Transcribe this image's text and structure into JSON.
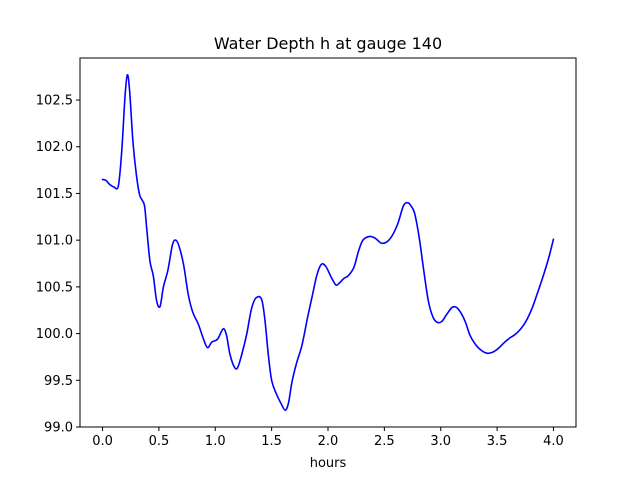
{
  "chart_data": {
    "type": "line",
    "title": "Water Depth h at gauge 140",
    "xlabel": "hours",
    "ylabel": "",
    "xlim": [
      -0.2,
      4.2
    ],
    "ylim": [
      99.0,
      102.95
    ],
    "x_ticks": [
      0.0,
      0.5,
      1.0,
      1.5,
      2.0,
      2.5,
      3.0,
      3.5,
      4.0
    ],
    "x_tick_labels": [
      "0.0",
      "0.5",
      "1.0",
      "1.5",
      "2.0",
      "2.5",
      "3.0",
      "3.5",
      "4.0"
    ],
    "y_ticks": [
      99.0,
      99.5,
      100.0,
      100.5,
      101.0,
      101.5,
      102.0,
      102.5
    ],
    "y_tick_labels": [
      "99.0",
      "99.5",
      "100.0",
      "100.5",
      "101.0",
      "101.5",
      "102.0",
      "102.5"
    ],
    "grid": false,
    "series": [
      {
        "color": "#0000ff",
        "points": [
          [
            0.0,
            101.65
          ],
          [
            0.03,
            101.64
          ],
          [
            0.06,
            101.6
          ],
          [
            0.1,
            101.57
          ],
          [
            0.14,
            101.58
          ],
          [
            0.17,
            101.95
          ],
          [
            0.2,
            102.55
          ],
          [
            0.22,
            102.77
          ],
          [
            0.24,
            102.6
          ],
          [
            0.27,
            102.05
          ],
          [
            0.3,
            101.7
          ],
          [
            0.33,
            101.48
          ],
          [
            0.37,
            101.38
          ],
          [
            0.39,
            101.15
          ],
          [
            0.42,
            100.78
          ],
          [
            0.45,
            100.62
          ],
          [
            0.48,
            100.35
          ],
          [
            0.51,
            100.29
          ],
          [
            0.54,
            100.5
          ],
          [
            0.58,
            100.68
          ],
          [
            0.62,
            100.95
          ],
          [
            0.65,
            101.0
          ],
          [
            0.68,
            100.93
          ],
          [
            0.72,
            100.73
          ],
          [
            0.76,
            100.42
          ],
          [
            0.8,
            100.23
          ],
          [
            0.85,
            100.1
          ],
          [
            0.89,
            99.96
          ],
          [
            0.93,
            99.85
          ],
          [
            0.97,
            99.91
          ],
          [
            1.02,
            99.94
          ],
          [
            1.07,
            100.05
          ],
          [
            1.1,
            99.98
          ],
          [
            1.13,
            99.78
          ],
          [
            1.17,
            99.64
          ],
          [
            1.2,
            99.64
          ],
          [
            1.24,
            99.8
          ],
          [
            1.28,
            100.0
          ],
          [
            1.32,
            100.26
          ],
          [
            1.36,
            100.38
          ],
          [
            1.41,
            100.37
          ],
          [
            1.44,
            100.15
          ],
          [
            1.47,
            99.78
          ],
          [
            1.5,
            99.5
          ],
          [
            1.54,
            99.36
          ],
          [
            1.58,
            99.26
          ],
          [
            1.62,
            99.18
          ],
          [
            1.65,
            99.26
          ],
          [
            1.68,
            99.48
          ],
          [
            1.72,
            99.68
          ],
          [
            1.77,
            99.88
          ],
          [
            1.82,
            100.18
          ],
          [
            1.86,
            100.4
          ],
          [
            1.9,
            100.62
          ],
          [
            1.94,
            100.74
          ],
          [
            1.98,
            100.72
          ],
          [
            2.03,
            100.6
          ],
          [
            2.07,
            100.52
          ],
          [
            2.1,
            100.54
          ],
          [
            2.14,
            100.59
          ],
          [
            2.18,
            100.62
          ],
          [
            2.23,
            100.71
          ],
          [
            2.27,
            100.88
          ],
          [
            2.31,
            101.0
          ],
          [
            2.37,
            101.04
          ],
          [
            2.42,
            101.02
          ],
          [
            2.47,
            100.97
          ],
          [
            2.52,
            100.98
          ],
          [
            2.57,
            101.05
          ],
          [
            2.62,
            101.18
          ],
          [
            2.67,
            101.37
          ],
          [
            2.71,
            101.4
          ],
          [
            2.74,
            101.36
          ],
          [
            2.77,
            101.28
          ],
          [
            2.81,
            101.02
          ],
          [
            2.85,
            100.67
          ],
          [
            2.89,
            100.35
          ],
          [
            2.93,
            100.18
          ],
          [
            2.97,
            100.12
          ],
          [
            3.01,
            100.13
          ],
          [
            3.05,
            100.2
          ],
          [
            3.1,
            100.28
          ],
          [
            3.14,
            100.28
          ],
          [
            3.18,
            100.22
          ],
          [
            3.22,
            100.12
          ],
          [
            3.26,
            99.98
          ],
          [
            3.31,
            99.88
          ],
          [
            3.36,
            99.82
          ],
          [
            3.41,
            99.79
          ],
          [
            3.46,
            99.8
          ],
          [
            3.51,
            99.84
          ],
          [
            3.56,
            99.9
          ],
          [
            3.61,
            99.95
          ],
          [
            3.66,
            99.99
          ],
          [
            3.71,
            100.05
          ],
          [
            3.76,
            100.14
          ],
          [
            3.81,
            100.27
          ],
          [
            3.86,
            100.44
          ],
          [
            3.91,
            100.62
          ],
          [
            3.96,
            100.82
          ],
          [
            4.0,
            101.01
          ]
        ]
      }
    ]
  }
}
